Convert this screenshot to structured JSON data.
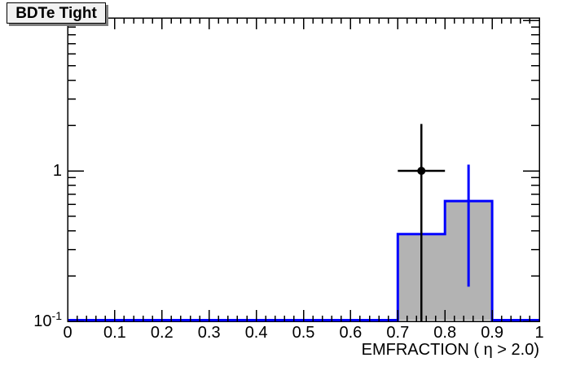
{
  "colors": {
    "background": "#ffffff",
    "frame": "#000000",
    "hist_fill": "#b3b3b3",
    "hist_line": "#0000ff",
    "marker": "#000000",
    "title_box_bg": "#f2f2f2",
    "title_box_border": "#000000",
    "title_box_shadow": "#7d7d7d"
  },
  "axes": {
    "x": {
      "title": "EMFRACTION ( η > 2.0)",
      "major_ticks": [
        {
          "v": 0.0,
          "label": "0"
        },
        {
          "v": 0.1,
          "label": "0.1"
        },
        {
          "v": 0.2,
          "label": "0.2"
        },
        {
          "v": 0.3,
          "label": "0.3"
        },
        {
          "v": 0.4,
          "label": "0.4"
        },
        {
          "v": 0.5,
          "label": "0.5"
        },
        {
          "v": 0.6,
          "label": "0.6"
        },
        {
          "v": 0.7,
          "label": "0.7"
        },
        {
          "v": 0.8,
          "label": "0.8"
        },
        {
          "v": 0.9,
          "label": "0.9"
        },
        {
          "v": 1.0,
          "label": "1"
        }
      ],
      "minor_divisions": 5
    },
    "y": {
      "scale": "log",
      "major_ticks": [
        {
          "v": 0.1,
          "base": "10",
          "exp": "-1"
        },
        {
          "v": 1,
          "base": "1",
          "exp": ""
        },
        {
          "v": 10,
          "base": "10",
          "exp": ""
        }
      ]
    }
  },
  "chart_data": {
    "type": "bar",
    "subtype": "ROOT step histogram, filled, log y-axis, with data point overlay",
    "title": "BDTe Tight",
    "xlabel": "EMFRACTION ( η > 2.0)",
    "ylabel": "",
    "xlim": [
      0,
      1
    ],
    "ylim": [
      0.1,
      10.4
    ],
    "yscale": "log",
    "grid": false,
    "legend": "none",
    "x_edges": [
      0,
      0.1,
      0.2,
      0.3,
      0.4,
      0.5,
      0.6,
      0.7,
      0.8,
      0.9,
      1.0
    ],
    "values": [
      0,
      0,
      0,
      0,
      0,
      0,
      0,
      0.38,
      0.63,
      0
    ],
    "hist_error_bar": {
      "x": 0.85,
      "y_low": 0.17,
      "y_high": 1.1
    },
    "data_points": [
      {
        "x": 0.75,
        "y": 1.0,
        "x_err_low": 0.05,
        "x_err_high": 0.05,
        "y_high": 2.05,
        "y_low": 0.1
      }
    ]
  }
}
